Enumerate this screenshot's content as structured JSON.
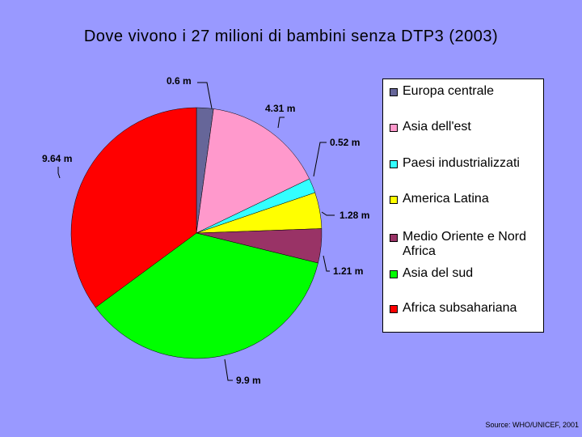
{
  "chart_data": {
    "type": "pie",
    "title": "Dove vivono i 27 milioni di bambini senza DTP3 (2003)",
    "slices": [
      {
        "name": "Europa centrale",
        "value": 0.6,
        "label": "0.6 m",
        "color": "#666699"
      },
      {
        "name": "Asia dell'est",
        "value": 4.31,
        "label": "4.31 m",
        "color": "#ff99cc"
      },
      {
        "name": "Paesi industrializzati",
        "value": 0.52,
        "label": "0.52 m",
        "color": "#33ffff"
      },
      {
        "name": "America Latina",
        "value": 1.28,
        "label": "1.28 m",
        "color": "#ffff00"
      },
      {
        "name": "Medio Oriente e Nord Africa",
        "value": 1.21,
        "label": "1.21 m",
        "color": "#993366"
      },
      {
        "name": "Asia del sud",
        "value": 9.9,
        "label": "9.9 m",
        "color": "#00ff00"
      },
      {
        "name": "Africa subsahariana",
        "value": 9.64,
        "label": "9.64 m",
        "color": "#ff0000"
      }
    ],
    "legend_position": "right",
    "source": "Source: WHO/UNICEF, 2001"
  }
}
